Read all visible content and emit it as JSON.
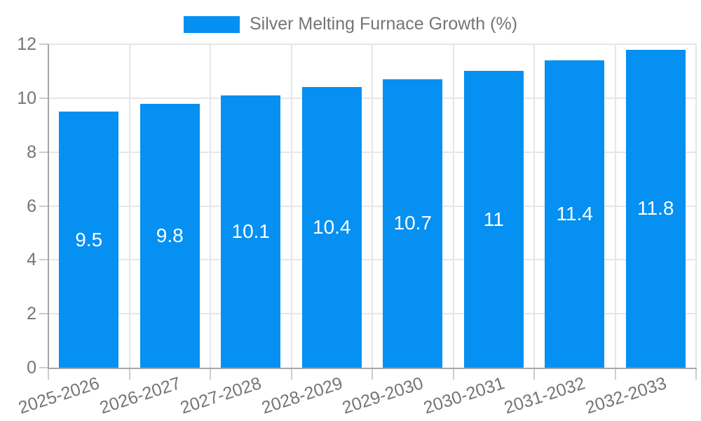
{
  "legend": {
    "label": "Silver Melting Furnace Growth (%)"
  },
  "colors": {
    "bar": "#0590F2",
    "grid": "#e6e6e6",
    "axis": "#a6a6a6",
    "tick": "#cccccc",
    "text": "#757575",
    "bar_label": "#ffffff",
    "background": "#ffffff"
  },
  "chart_data": {
    "type": "bar",
    "title": "Silver Melting Furnace Growth (%)",
    "series_name": "Silver Melting Furnace Growth (%)",
    "categories": [
      "2025-2026",
      "2026-2027",
      "2027-2028",
      "2028-2029",
      "2029-2030",
      "2030-2031",
      "2031-2032",
      "2032-2033"
    ],
    "values": [
      9.5,
      9.8,
      10.1,
      10.4,
      10.7,
      11,
      11.4,
      11.8
    ],
    "xlabel": "",
    "ylabel": "",
    "ylim": [
      0,
      12
    ],
    "yticks": [
      0,
      2,
      4,
      6,
      8,
      10,
      12
    ],
    "grid": true,
    "legend_position": "top",
    "bar_labels_visible": true,
    "x_label_rotation_deg": -18
  }
}
